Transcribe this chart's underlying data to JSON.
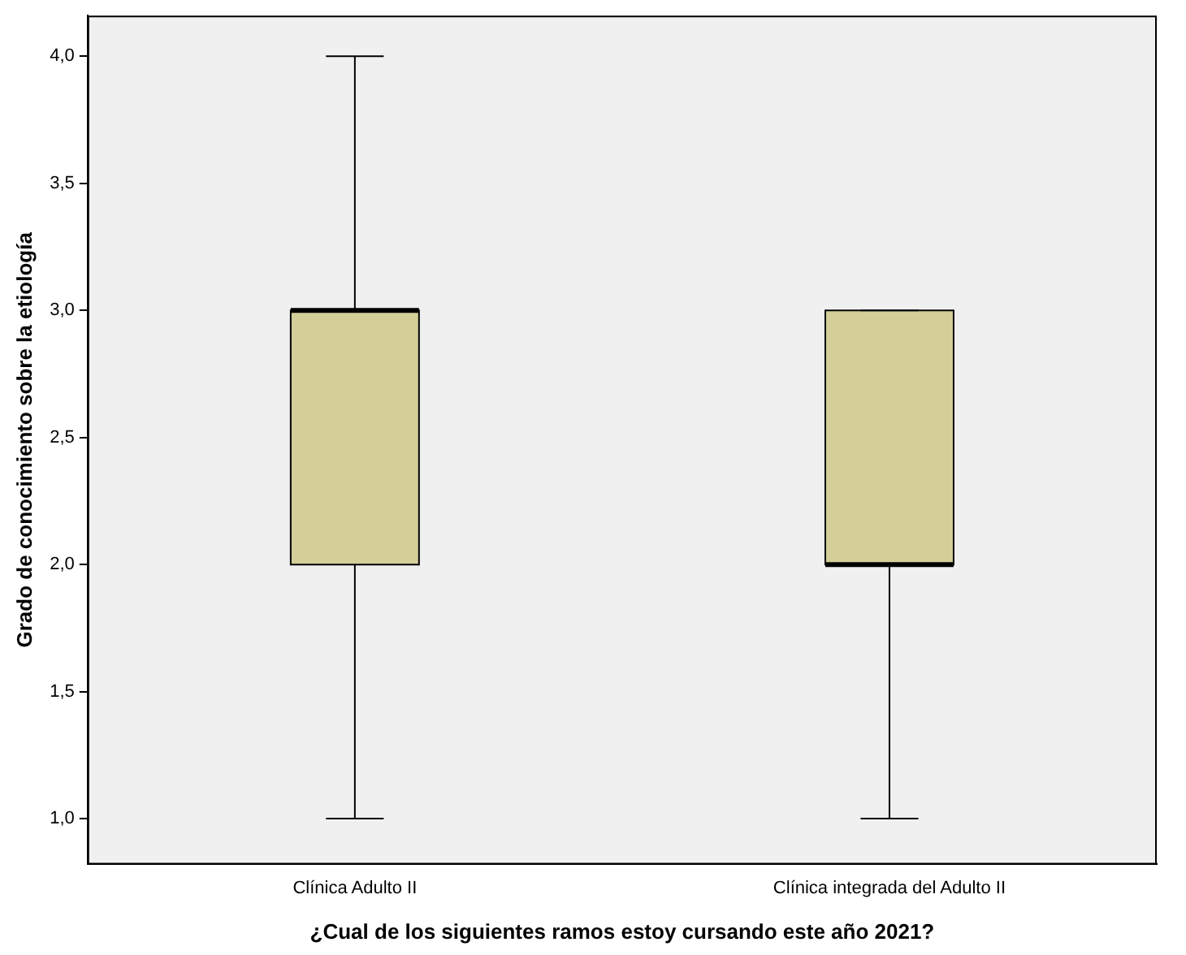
{
  "chart_data": {
    "type": "box",
    "xlabel": "¿Cual de los siguientes ramos estoy cursando este año 2021?",
    "ylabel": "Grado de conocimiento sobre la etiología",
    "categories": [
      "Clínica Adulto II",
      "Clínica integrada del Adulto II"
    ],
    "series": [
      {
        "color": "#d4cf99",
        "boxes": [
          {
            "low": 1,
            "q1": 2,
            "median": 3,
            "q3": 3,
            "high": 4
          },
          {
            "low": 1,
            "q1": 2,
            "median": 2,
            "q3": 3,
            "high": 3
          }
        ]
      }
    ],
    "ylim": [
      0.82,
      4.16
    ],
    "yticks": [
      {
        "value": 1,
        "label": "1,0"
      },
      {
        "value": 1.5,
        "label": "1,5"
      },
      {
        "value": 2,
        "label": "2,0"
      },
      {
        "value": 2.5,
        "label": "2,5"
      },
      {
        "value": 3,
        "label": "3,0"
      },
      {
        "value": 3.5,
        "label": "3,5"
      },
      {
        "value": 4,
        "label": "4,0"
      }
    ],
    "grid": false,
    "legend": false
  }
}
